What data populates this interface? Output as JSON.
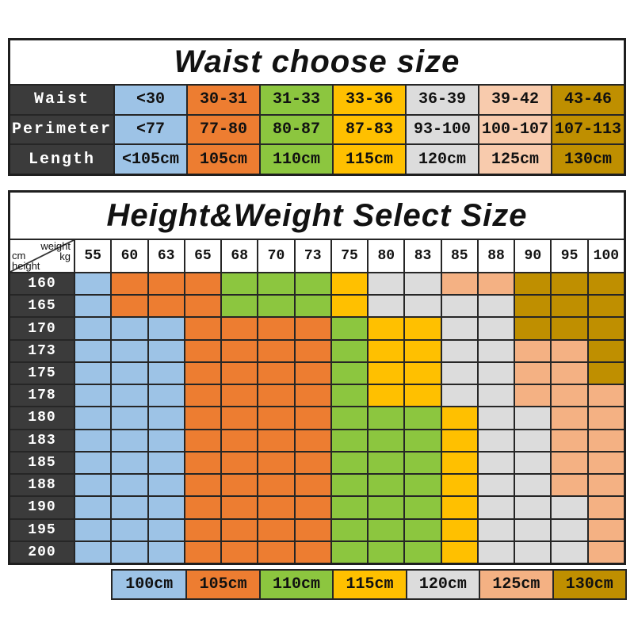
{
  "colors": {
    "blue": "#9DC3E6",
    "orange": "#ED7D31",
    "green": "#8CC63F",
    "yellow": "#FFC000",
    "gray": "#DCDCDC",
    "peach_light": "#F8CBAD",
    "peach": "#F4B183",
    "gold": "#BF8F00",
    "header_dark": "#3B3B3B"
  },
  "color_map": {
    "B": "blue",
    "O": "orange",
    "G": "green",
    "Y": "yellow",
    "S": "gray",
    "P": "peach",
    "D": "gold"
  },
  "chart_data": [
    {
      "type": "table",
      "title": "Waist choose size",
      "row_headers": [
        "Waist",
        "Perimeter",
        "Length"
      ],
      "rows": [
        [
          "<30",
          "30-31",
          "31-33",
          "33-36",
          "36-39",
          "39-42",
          "43-46"
        ],
        [
          "<77",
          "77-80",
          "80-87",
          "87-83",
          "93-100",
          "100-107",
          "107-113"
        ],
        [
          "<105cm",
          "105cm",
          "110cm",
          "115cm",
          "120cm",
          "125cm",
          "130cm"
        ]
      ],
      "column_colors": [
        "blue",
        "orange",
        "green",
        "yellow",
        "gray",
        "peach_light",
        "gold"
      ]
    },
    {
      "type": "heatmap",
      "title": "Height&Weight Select Size",
      "corner": {
        "top_label": "weight",
        "top_unit": "kg",
        "side_unit": "cm",
        "side_label": "height"
      },
      "col_headers": [
        "55",
        "60",
        "63",
        "65",
        "68",
        "70",
        "73",
        "75",
        "80",
        "83",
        "85",
        "88",
        "90",
        "95",
        "100"
      ],
      "row_headers": [
        "160",
        "165",
        "170",
        "173",
        "175",
        "178",
        "180",
        "183",
        "185",
        "188",
        "190",
        "195",
        "200"
      ],
      "cells": [
        "BOOOGGGYSSPPDDD",
        "BOOOGGGYSSSSDDD",
        "BBBOOOOGYYSSDDD",
        "BBBOOOOGYYSSPPD",
        "BBBOOOOGYYSSPPD",
        "BBBOOOOGYYSSPPP",
        "BBBOOOOGGGYSSPP",
        "BBBOOOOGGGYSSPP",
        "BBBOOOOGGGYSSPP",
        "BBBOOOOGGGYSSPP",
        "BBBOOOOGGGYSSSP",
        "BBBOOOOGGGYSSSP",
        "BBBOOOOGGGYSSSP"
      ],
      "legend": [
        {
          "label": "100cm",
          "color": "blue"
        },
        {
          "label": "105cm",
          "color": "orange"
        },
        {
          "label": "110cm",
          "color": "green"
        },
        {
          "label": "115cm",
          "color": "yellow"
        },
        {
          "label": "120cm",
          "color": "gray"
        },
        {
          "label": "125cm",
          "color": "peach"
        },
        {
          "label": "130cm",
          "color": "gold"
        }
      ]
    }
  ]
}
